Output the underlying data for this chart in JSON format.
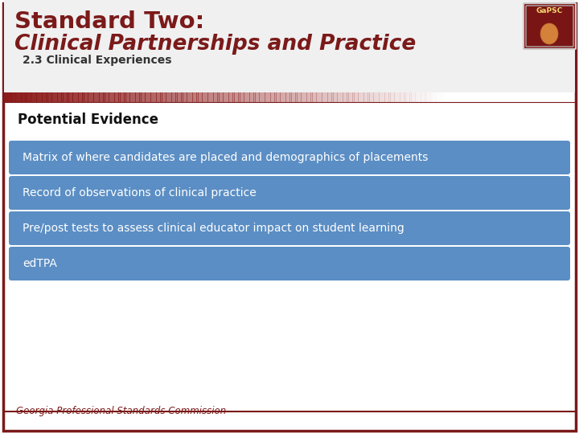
{
  "title_line1": "Standard Two:",
  "title_line2": "Clinical Partnerships and Practice",
  "subtitle": "2.3 Clinical Experiences",
  "section_label": "Potential Evidence",
  "bullets": [
    "Matrix of where candidates are placed and demographics of placements",
    "Record of observations of clinical practice",
    "Pre/post tests to assess clinical educator impact on student learning",
    "edTPA"
  ],
  "bg_color": "#ffffff",
  "border_color": "#7b1a1a",
  "title_color": "#7b1a1a",
  "subtitle_color": "#333333",
  "bullet_bg": "#5b8ec4",
  "bullet_text_color": "#ffffff",
  "section_label_color": "#111111",
  "footer_text": "Georgia Professional Standards Commission",
  "footer_color": "#7b1a1a",
  "stripe_color": "#8b1a1a",
  "header_bg": "#f0f0f0",
  "shield_color": "#8b1a1a",
  "gapsc_text_color": "#f5d76e"
}
